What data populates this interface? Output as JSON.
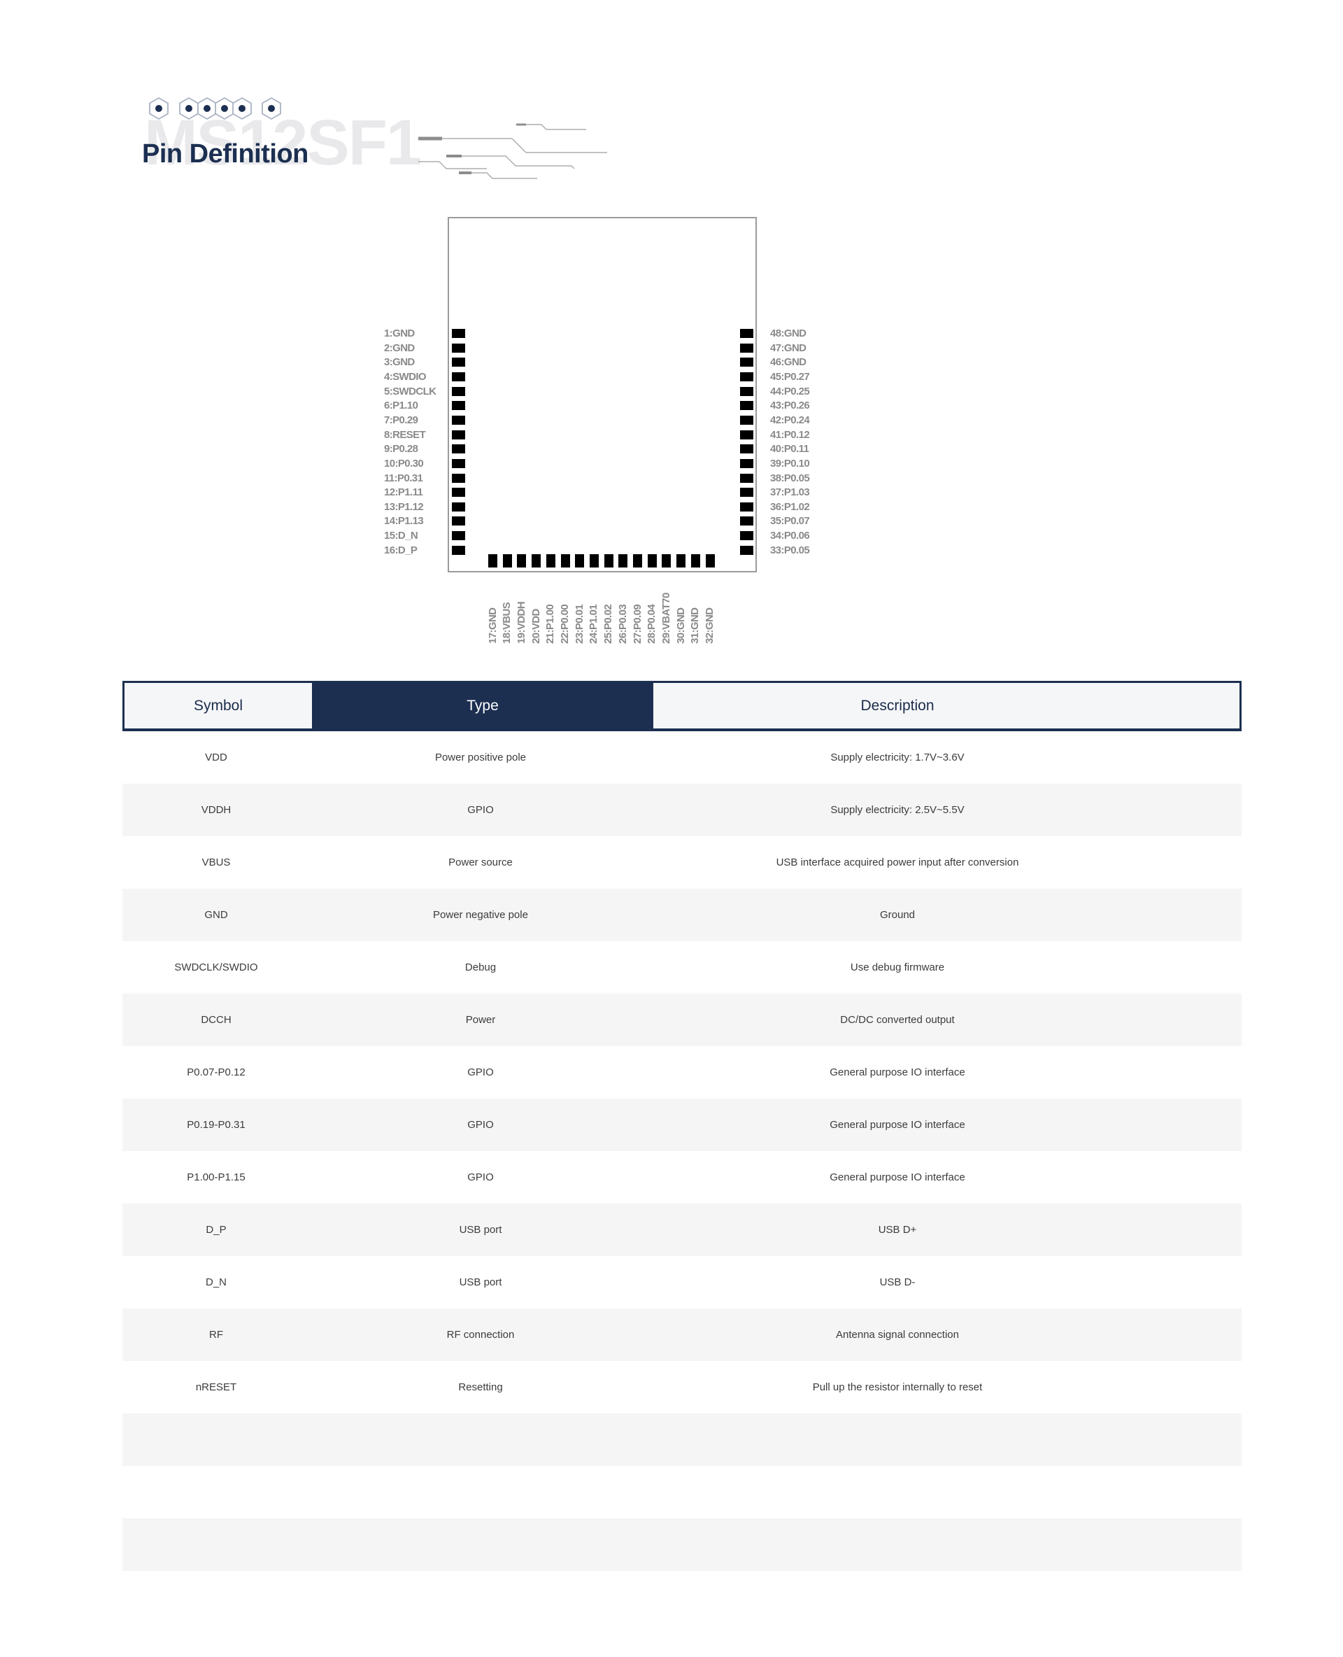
{
  "header": {
    "watermark": "MS12SF1",
    "title": "Pin Definition"
  },
  "icons": {
    "logo": "hexagon-cluster-logo",
    "decor": "circuit-traces"
  },
  "chip": {
    "left_pins": [
      "1:GND",
      "2:GND",
      "3:GND",
      "4:SWDIO",
      "5:SWDCLK",
      "6:P1.10",
      "7:P0.29",
      "8:RESET",
      "9:P0.28",
      "10:P0.30",
      "11:P0.31",
      "12:P1.11",
      "13:P1.12",
      "14:P1.13",
      "15:D_N",
      "16:D_P"
    ],
    "right_pins": [
      "48:GND",
      "47:GND",
      "46:GND",
      "45:P0.27",
      "44:P0.25",
      "43:P0.26",
      "42:P0.24",
      "41:P0.12",
      "40:P0.11",
      "39:P0.10",
      "38:P0.05",
      "37:P1.03",
      "36:P1.02",
      "35:P0.07",
      "34:P0.06",
      "33:P0.05"
    ],
    "bottom_pins": [
      "17:GND",
      "18:VBUS",
      "19:VDDH",
      "20:VDD",
      "21:P1.00",
      "22:P0.00",
      "23:P0.01",
      "24:P1.01",
      "25:P0.02",
      "26:P0.03",
      "27:P0.09",
      "28:P0.04",
      "29:VBAT70",
      "30:GND",
      "31:GND",
      "32:GND"
    ]
  },
  "table": {
    "headers": [
      "Symbol",
      "Type",
      "Description"
    ],
    "rows": [
      {
        "symbol": "VDD",
        "type": "Power positive pole",
        "description": "Supply electricity: 1.7V~3.6V"
      },
      {
        "symbol": "VDDH",
        "type": "GPIO",
        "description": "Supply electricity: 2.5V~5.5V"
      },
      {
        "symbol": "VBUS",
        "type": "Power source",
        "description": "USB interface acquired power input after conversion"
      },
      {
        "symbol": "GND",
        "type": "Power negative pole",
        "description": "Ground"
      },
      {
        "symbol": "SWDCLK/SWDIO",
        "type": "Debug",
        "description": "Use debug firmware"
      },
      {
        "symbol": "DCCH",
        "type": "Power",
        "description": "DC/DC converted output"
      },
      {
        "symbol": "P0.07-P0.12",
        "type": "GPIO",
        "description": "General purpose IO interface"
      },
      {
        "symbol": "P0.19-P0.31",
        "type": "GPIO",
        "description": "General purpose IO interface"
      },
      {
        "symbol": "P1.00-P1.15",
        "type": "GPIO",
        "description": "General purpose IO interface"
      },
      {
        "symbol": "D_P",
        "type": "USB port",
        "description": "USB D+"
      },
      {
        "symbol": "D_N",
        "type": "USB port",
        "description": "USB D-"
      },
      {
        "symbol": "RF",
        "type": "RF connection",
        "description": "Antenna signal connection"
      },
      {
        "symbol": "nRESET",
        "type": "Resetting",
        "description": "Pull up the resistor internally to reset"
      },
      {
        "symbol": "",
        "type": "",
        "description": ""
      },
      {
        "symbol": "",
        "type": "",
        "description": ""
      },
      {
        "symbol": "",
        "type": "",
        "description": ""
      }
    ]
  },
  "colors": {
    "navy": "#1c2f51",
    "header_text": "#1b2b4a",
    "row_alt": "#f5f5f6",
    "header_bg": "#f5f6f8",
    "pin_text": "#8a8a8a",
    "watermark": "#e9e9ec",
    "pin_square": "#000000",
    "chip_border": "#9b9b9b"
  }
}
